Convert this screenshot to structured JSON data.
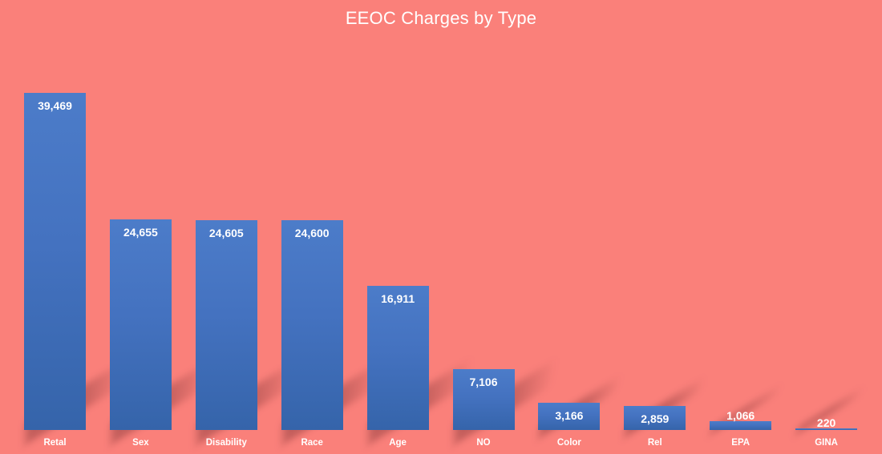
{
  "chart_data": {
    "type": "bar",
    "title": "EEOC Charges by Type",
    "categories": [
      "Retal",
      "Sex",
      "Disability",
      "Race",
      "Age",
      "NO",
      "Color",
      "Rel",
      "EPA",
      "GINA"
    ],
    "values": [
      39469,
      24655,
      24605,
      24600,
      16911,
      7106,
      3166,
      2859,
      1066,
      220
    ],
    "value_labels": [
      "39,469",
      "24,655",
      "24,605",
      "24,600",
      "16,911",
      "7,106",
      "3,166",
      "2,859",
      "1,066",
      "220"
    ],
    "xlabel": "",
    "ylabel": "",
    "ylim": [
      0,
      39469
    ],
    "grid": false,
    "legend": "none",
    "colors": {
      "background": "#FA807A",
      "bar_top": "#4C7CC9",
      "bar_bottom": "#3564AA",
      "text": "#FFFFFF",
      "shadow": "rgba(88,28,32,0.34)"
    }
  }
}
